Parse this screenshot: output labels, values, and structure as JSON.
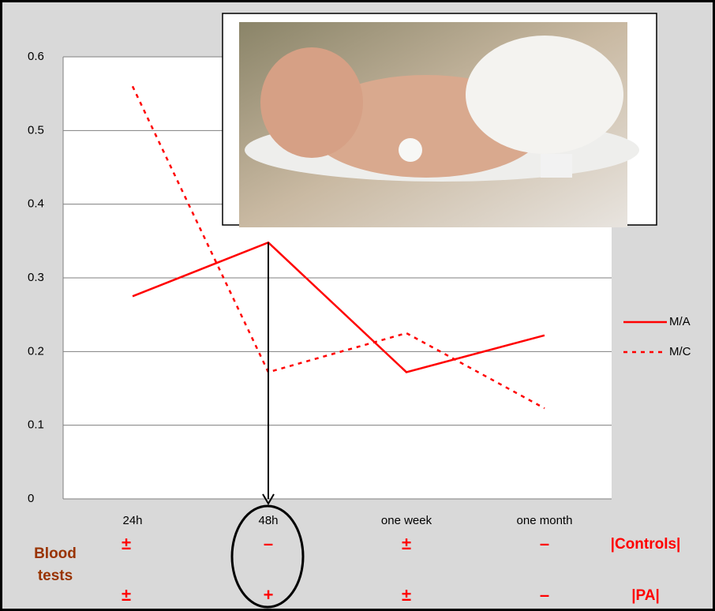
{
  "chart_data": {
    "type": "line",
    "categories": [
      "24h",
      "48h",
      "one week",
      "one month"
    ],
    "series": [
      {
        "name": "M/A",
        "color": "#ff0000",
        "dash": false,
        "values": [
          0.275,
          0.348,
          0.172,
          0.222
        ]
      },
      {
        "name": "M/C",
        "color": "#ff0000",
        "dash": true,
        "values": [
          0.56,
          0.172,
          0.225,
          0.123
        ]
      }
    ],
    "ylim": [
      0,
      0.6
    ],
    "yticks": [
      0,
      0.1,
      0.2,
      0.3,
      0.4,
      0.5,
      0.6
    ],
    "grid": true
  },
  "blood_tests": {
    "label": "Blood tests",
    "rows": [
      {
        "name": "|Controls|",
        "values": [
          "±",
          "–",
          "±",
          "–"
        ]
      },
      {
        "name": "|PA|",
        "values": [
          "±",
          "+",
          "±",
          "–"
        ]
      }
    ]
  }
}
